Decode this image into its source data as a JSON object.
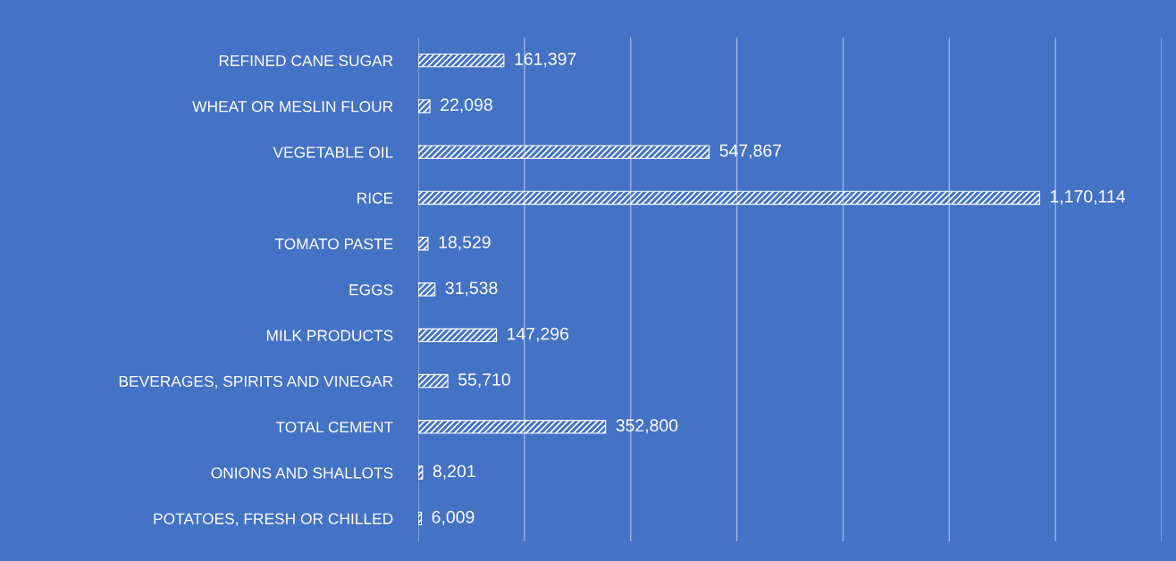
{
  "chart_data": {
    "type": "bar",
    "orientation": "horizontal",
    "categories": [
      "REFINED CANE SUGAR",
      "WHEAT OR MESLIN FLOUR",
      "VEGETABLE OIL",
      "RICE",
      "TOMATO PASTE",
      "EGGS",
      "MILK PRODUCTS",
      "BEVERAGES, SPIRITS AND VINEGAR",
      "TOTAL CEMENT",
      "ONIONS AND SHALLOTS",
      "POTATOES, FRESH OR CHILLED"
    ],
    "values": [
      161397,
      22098,
      547867,
      1170114,
      18529,
      31538,
      147296,
      55710,
      352800,
      8201,
      6009
    ],
    "value_labels": [
      "161,397",
      "22,098",
      "547,867",
      "1,170,114",
      "18,529",
      "31,538",
      "147,296",
      "55,710",
      "352,800",
      "8,201",
      "6,009"
    ],
    "color": "#ffffff",
    "xlim": [
      0,
      1400000
    ],
    "xticks": [
      {
        "value": 0,
        "label": null
      },
      {
        "value": 200000,
        "label": null
      },
      {
        "value": 400000,
        "label": null
      },
      {
        "value": 600000,
        "label": null
      },
      {
        "value": 800000,
        "label": null
      },
      {
        "value": 1000000,
        "label": null
      },
      {
        "value": 1200000,
        "label": null
      },
      {
        "value": 1400000,
        "label": null
      }
    ],
    "grid": "x",
    "tick_labels": "y"
  }
}
